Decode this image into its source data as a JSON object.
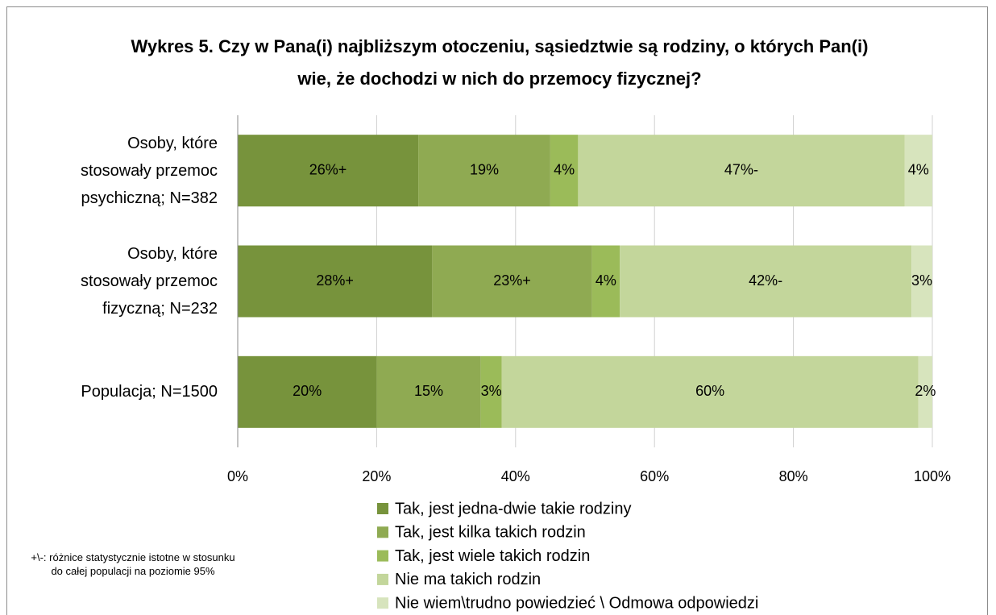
{
  "chart_data": {
    "type": "stacked-barh",
    "title": "Wykres 5. Czy w Pana(i) najbliższym otoczeniu, sąsiedztwie są rodziny, o których Pan(i) wie, że dochodzi w nich do przemocy fizycznej?",
    "categories": [
      "Osoby, które stosowały przemoc psychiczną; N=382",
      "Osoby, które stosowały przemoc fizyczną; N=232",
      "Populacja; N=1500"
    ],
    "series": [
      {
        "name": "Tak, jest jedna-dwie takie rodziny",
        "color": "#77933c",
        "values": [
          26,
          28,
          20
        ],
        "value_labels": [
          "26%+",
          "28%+",
          "20%"
        ]
      },
      {
        "name": "Tak, jest kilka takich rodzin",
        "color": "#8faa52",
        "values": [
          19,
          23,
          15
        ],
        "value_labels": [
          "19%",
          "23%+",
          "15%"
        ]
      },
      {
        "name": "Tak, jest wiele takich rodzin",
        "color": "#9bbb59",
        "values": [
          4,
          4,
          3
        ],
        "value_labels": [
          "4%",
          "4%",
          "3%"
        ]
      },
      {
        "name": "Nie ma takich rodzin",
        "color": "#c3d69b",
        "values": [
          47,
          42,
          60
        ],
        "value_labels": [
          "47%-",
          "42%-",
          "60%"
        ]
      },
      {
        "name": "Nie wiem\\trudno powiedzieć \\ Odmowa odpowiedzi",
        "color": "#d7e4bd",
        "values": [
          4,
          3,
          2
        ],
        "value_labels": [
          "4%",
          "3%",
          "2%"
        ]
      }
    ],
    "xlim": [
      0,
      100
    ],
    "xticks": [
      {
        "value": 0,
        "label": "0%"
      },
      {
        "value": 20,
        "label": "20%"
      },
      {
        "value": 40,
        "label": "40%"
      },
      {
        "value": 60,
        "label": "60%"
      },
      {
        "value": 80,
        "label": "80%"
      },
      {
        "value": 100,
        "label": "100%"
      }
    ],
    "grid": true,
    "annotation": "+\\-: różnice statystycznie istotne w stosunku do całej populacji na poziomie 95%"
  }
}
